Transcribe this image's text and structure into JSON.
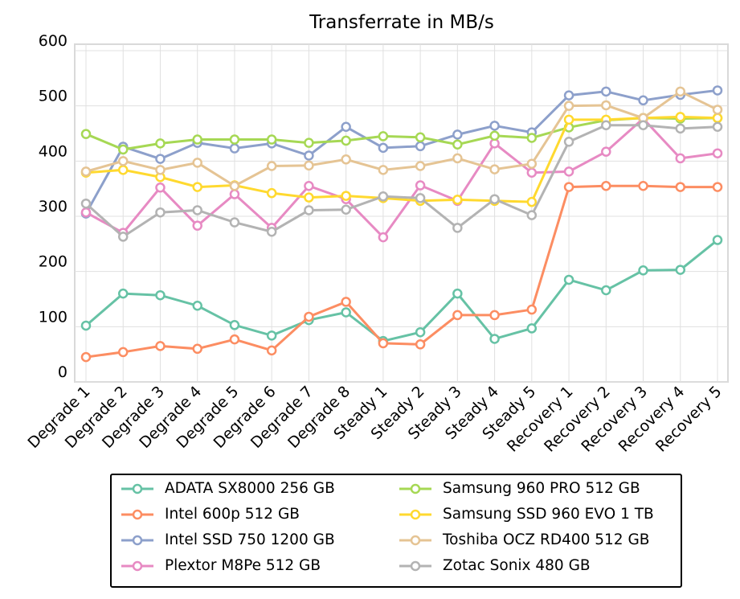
{
  "chart_data": {
    "type": "line",
    "title": "Transferrate in MB/s",
    "xlabel": "",
    "ylabel": "",
    "ylim": [
      0,
      600
    ],
    "yticks": [
      "0",
      "100",
      "200",
      "300",
      "400",
      "500",
      "600"
    ],
    "grid": true,
    "legend_placement": "bottom",
    "categories": [
      "Degrade 1",
      "Degrade 2",
      "Degrade 3",
      "Degrade 4",
      "Degrade 5",
      "Degrade 6",
      "Degrade 7",
      "Degrade 8",
      "Steady 1",
      "Steady 2",
      "Steady 3",
      "Steady 4",
      "Steady 5",
      "Recovery 1",
      "Recovery 2",
      "Recovery 3",
      "Recovery 4",
      "Recovery 5"
    ],
    "series": [
      {
        "name": "ADATA SX8000 256 GB",
        "color": "#66c2a5",
        "values": [
          102,
          160,
          157,
          138,
          103,
          84,
          112,
          126,
          74,
          90,
          160,
          78,
          97,
          185,
          166,
          202,
          203,
          257
        ]
      },
      {
        "name": "Intel 600p 512 GB",
        "color": "#fc8d62",
        "values": [
          45,
          54,
          65,
          60,
          77,
          57,
          118,
          145,
          70,
          68,
          121,
          121,
          131,
          353,
          355,
          355,
          353,
          353
        ]
      },
      {
        "name": "Intel SSD 750 1200 GB",
        "color": "#8da0cb",
        "values": [
          305,
          426,
          404,
          433,
          423,
          432,
          410,
          462,
          424,
          427,
          448,
          464,
          452,
          519,
          526,
          510,
          520,
          528
        ]
      },
      {
        "name": "Plextor M8Pe 512 GB",
        "color": "#e78ac3",
        "values": [
          307,
          270,
          352,
          283,
          340,
          279,
          355,
          331,
          262,
          356,
          328,
          432,
          379,
          381,
          417,
          477,
          405,
          414
        ]
      },
      {
        "name": "Samsung 960 PRO 512 GB",
        "color": "#a6d854",
        "values": [
          449,
          421,
          432,
          439,
          439,
          439,
          433,
          437,
          445,
          443,
          430,
          446,
          442,
          461,
          474,
          478,
          477,
          478
        ]
      },
      {
        "name": "Samsung SSD 960 EVO 1 TB",
        "color": "#ffd92f",
        "values": [
          379,
          384,
          371,
          353,
          356,
          342,
          334,
          337,
          333,
          328,
          330,
          328,
          326,
          475,
          475,
          478,
          480,
          478
        ]
      },
      {
        "name": "Toshiba OCZ RD400 512 GB",
        "color": "#e5c494",
        "values": [
          381,
          400,
          384,
          397,
          355,
          391,
          392,
          403,
          384,
          391,
          405,
          385,
          395,
          500,
          501,
          478,
          526,
          493
        ]
      },
      {
        "name": "Zotac Sonix 480 GB",
        "color": "#b3b3b3",
        "values": [
          323,
          263,
          307,
          311,
          289,
          272,
          311,
          312,
          336,
          333,
          279,
          331,
          302,
          435,
          465,
          465,
          459,
          462
        ]
      }
    ]
  }
}
